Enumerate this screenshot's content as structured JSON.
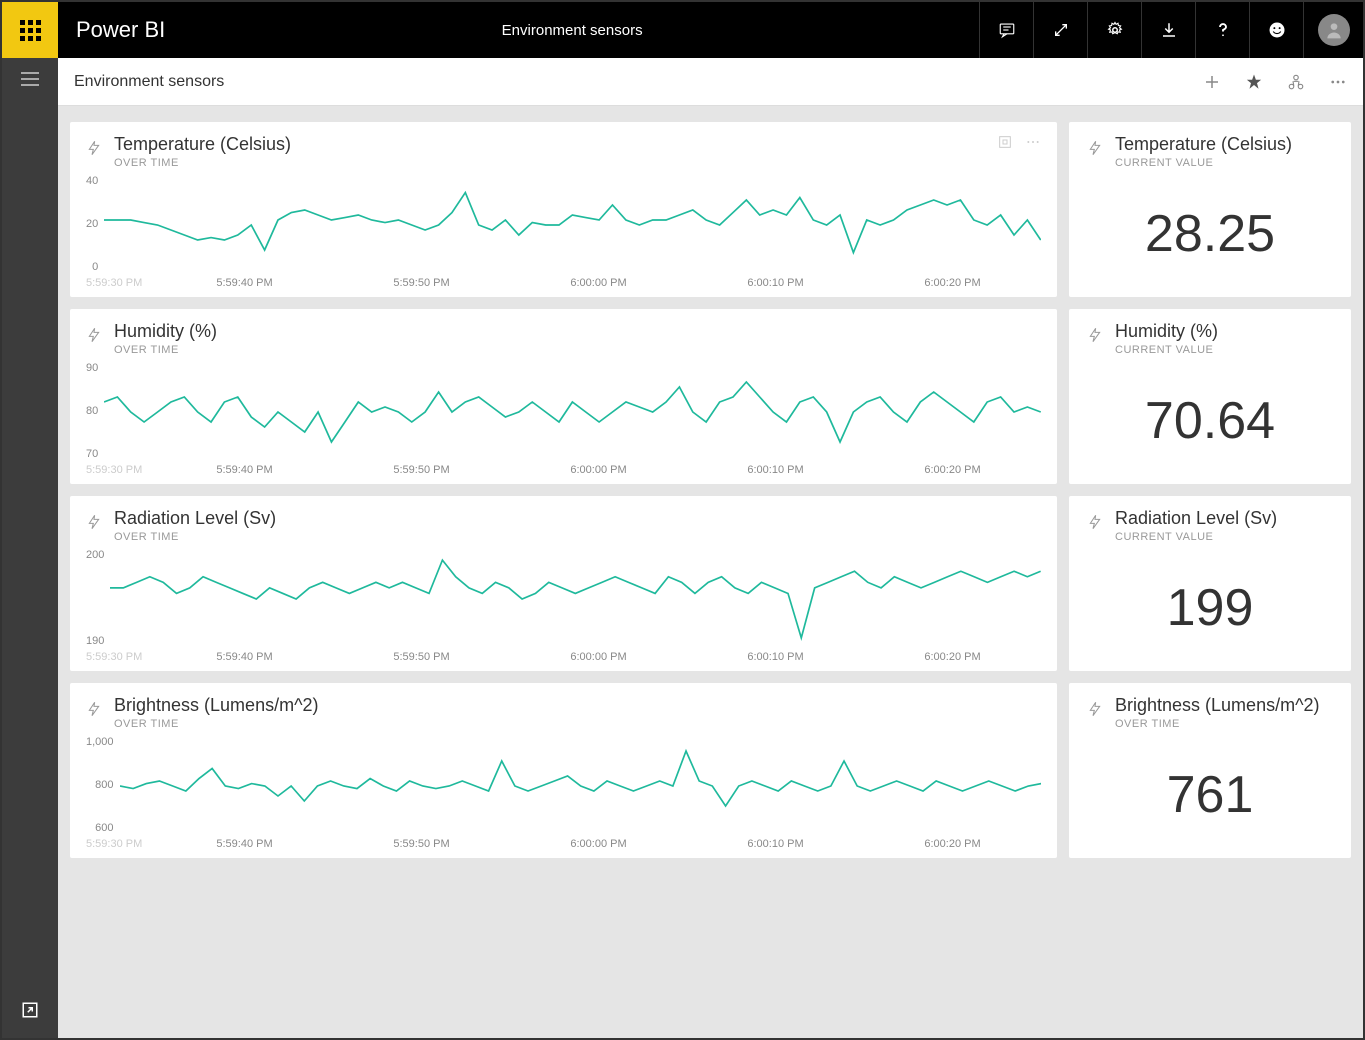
{
  "app": {
    "title": "Power BI",
    "page_title": "Environment sensors"
  },
  "subheader": {
    "title": "Environment sensors"
  },
  "colors": {
    "line": "#1fb99c",
    "axis_text": "#888888",
    "tile_bg": "#ffffff",
    "page_bg": "#e5e5e5",
    "topbar_bg": "#000000",
    "accent": "#f2c811"
  },
  "x_axis": {
    "first": "5:59:30 PM",
    "ticks": [
      "5:59:40 PM",
      "5:59:50 PM",
      "6:00:00 PM",
      "6:00:10 PM",
      "6:00:20 PM"
    ]
  },
  "sensors": [
    {
      "id": "temperature",
      "title": "Temperature (Celsius)",
      "chart_subtitle": "OVER TIME",
      "value_subtitle": "CURRENT VALUE",
      "current": "28.25",
      "y_ticks": [
        "40",
        "20",
        "0"
      ],
      "y_min": 0,
      "y_max": 40,
      "series": [
        22,
        22,
        22,
        21,
        20,
        18,
        16,
        14,
        15,
        14,
        16,
        20,
        10,
        22,
        25,
        26,
        24,
        22,
        23,
        24,
        22,
        21,
        22,
        20,
        18,
        20,
        25,
        33,
        20,
        18,
        22,
        16,
        21,
        20,
        20,
        24,
        23,
        22,
        28,
        22,
        20,
        22,
        22,
        24,
        26,
        22,
        20,
        25,
        30,
        24,
        26,
        24,
        31,
        22,
        20,
        24,
        9,
        22,
        20,
        22,
        26,
        28,
        30,
        28,
        30,
        22,
        20,
        24,
        16,
        22,
        14
      ]
    },
    {
      "id": "humidity",
      "title": "Humidity (%)",
      "chart_subtitle": "OVER TIME",
      "value_subtitle": "CURRENT VALUE",
      "current": "70.64",
      "y_ticks": [
        "90",
        "80",
        "70"
      ],
      "y_min": 70,
      "y_max": 90,
      "series": [
        82,
        83,
        80,
        78,
        80,
        82,
        83,
        80,
        78,
        82,
        83,
        79,
        77,
        80,
        78,
        76,
        80,
        74,
        78,
        82,
        80,
        81,
        80,
        78,
        80,
        84,
        80,
        82,
        83,
        81,
        79,
        80,
        82,
        80,
        78,
        82,
        80,
        78,
        80,
        82,
        81,
        80,
        82,
        85,
        80,
        78,
        82,
        83,
        86,
        83,
        80,
        78,
        82,
        83,
        80,
        74,
        80,
        82,
        83,
        80,
        78,
        82,
        84,
        82,
        80,
        78,
        82,
        83,
        80,
        81,
        80
      ]
    },
    {
      "id": "radiation",
      "title": "Radiation Level (Sv)",
      "chart_subtitle": "OVER TIME",
      "value_subtitle": "CURRENT VALUE",
      "current": "199",
      "y_ticks": [
        "200",
        "190"
      ],
      "y_min": 188,
      "y_max": 206,
      "series": [
        199,
        199,
        200,
        201,
        200,
        198,
        199,
        201,
        200,
        199,
        198,
        197,
        199,
        198,
        197,
        199,
        200,
        199,
        198,
        199,
        200,
        199,
        200,
        199,
        198,
        204,
        201,
        199,
        198,
        200,
        199,
        197,
        198,
        200,
        199,
        198,
        199,
        200,
        201,
        200,
        199,
        198,
        201,
        200,
        198,
        200,
        201,
        199,
        198,
        200,
        199,
        198,
        190,
        199,
        200,
        201,
        202,
        200,
        199,
        201,
        200,
        199,
        200,
        201,
        202,
        201,
        200,
        201,
        202,
        201,
        202
      ]
    },
    {
      "id": "brightness",
      "title": "Brightness (Lumens/m^2)",
      "chart_subtitle": "OVER TIME",
      "value_subtitle": "OVER TIME",
      "current": "761",
      "y_ticks": [
        "1,000",
        "800",
        "600"
      ],
      "y_min": 600,
      "y_max": 1000,
      "series": [
        800,
        790,
        810,
        820,
        800,
        780,
        830,
        870,
        800,
        790,
        810,
        800,
        760,
        800,
        740,
        800,
        820,
        800,
        790,
        830,
        800,
        780,
        820,
        800,
        790,
        800,
        820,
        800,
        780,
        900,
        800,
        780,
        800,
        820,
        840,
        800,
        780,
        820,
        800,
        780,
        800,
        820,
        800,
        940,
        820,
        800,
        720,
        800,
        820,
        800,
        780,
        820,
        800,
        780,
        800,
        900,
        800,
        780,
        800,
        820,
        800,
        780,
        820,
        800,
        780,
        800,
        820,
        800,
        780,
        800,
        810
      ]
    }
  ]
}
